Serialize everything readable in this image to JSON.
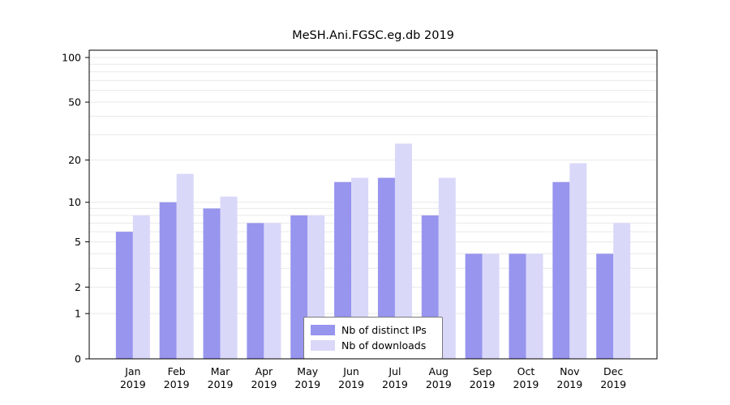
{
  "title": "MeSH.Ani.FGSC.eg.db 2019",
  "colors": {
    "distinct_ips": "#9795ee",
    "downloads": "#d9d8f9",
    "grid": "#e9e9e9",
    "axis": "#000000",
    "background": "#ffffff",
    "tick_text": "#000000"
  },
  "legend": {
    "items": [
      {
        "label": "Nb of distinct IPs",
        "series_key": "distinct_ips"
      },
      {
        "label": "Nb of downloads",
        "series_key": "downloads"
      }
    ]
  },
  "chart_data": {
    "type": "bar",
    "title": "MeSH.Ani.FGSC.eg.db 2019",
    "categories": [
      "Jan 2019",
      "Feb 2019",
      "Mar 2019",
      "Apr 2019",
      "May 2019",
      "Jun 2019",
      "Jul 2019",
      "Aug 2019",
      "Sep 2019",
      "Oct 2019",
      "Nov 2019",
      "Dec 2019"
    ],
    "series": [
      {
        "name": "Nb of distinct IPs",
        "color_key": "distinct_ips",
        "values": [
          6,
          10,
          9,
          7,
          8,
          14,
          15,
          8,
          4,
          4,
          14,
          4
        ]
      },
      {
        "name": "Nb of downloads",
        "color_key": "downloads",
        "values": [
          8,
          16,
          11,
          7,
          8,
          15,
          26,
          15,
          4,
          4,
          19,
          7
        ]
      }
    ],
    "xlabel": "",
    "ylabel": "",
    "yscale": "log1p",
    "ylim": [
      0,
      100
    ],
    "yticks": [
      0,
      1,
      2,
      5,
      10,
      20,
      50,
      100
    ],
    "grid_values": [
      1,
      2,
      3,
      4,
      5,
      6,
      7,
      8,
      9,
      10,
      20,
      30,
      40,
      50,
      60,
      70,
      80,
      90,
      100
    ],
    "grid": true,
    "legend_position": "inside-bottom-center"
  }
}
